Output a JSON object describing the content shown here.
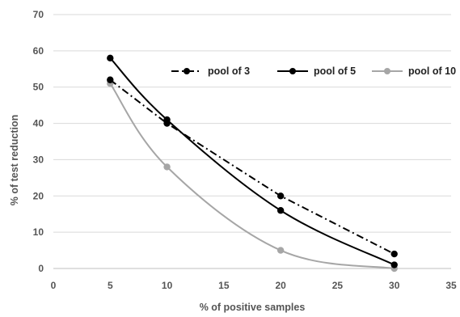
{
  "chart_data": {
    "type": "line",
    "xlabel": "% of positive samples",
    "ylabel": "% of test reduction",
    "xlim": [
      0,
      35
    ],
    "ylim": [
      0,
      70
    ],
    "x_ticks": [
      "0",
      "5",
      "10",
      "15",
      "20",
      "25",
      "30",
      "35"
    ],
    "y_ticks": [
      "0",
      "10",
      "20",
      "30",
      "40",
      "50",
      "60",
      "70"
    ],
    "grid": "horizontal",
    "legend_position": "top-right",
    "x": [
      5,
      10,
      20,
      30
    ],
    "series": [
      {
        "name": "pool of 3",
        "values": [
          52,
          40,
          20,
          4
        ],
        "color": "#000000",
        "dash": "dash-dot"
      },
      {
        "name": "pool of 5",
        "values": [
          58,
          41,
          16,
          1
        ],
        "color": "#000000",
        "dash": "solid"
      },
      {
        "name": "pool of 10",
        "values": [
          51,
          28,
          5,
          0
        ],
        "color": "#a6a6a6",
        "dash": "solid"
      }
    ]
  }
}
